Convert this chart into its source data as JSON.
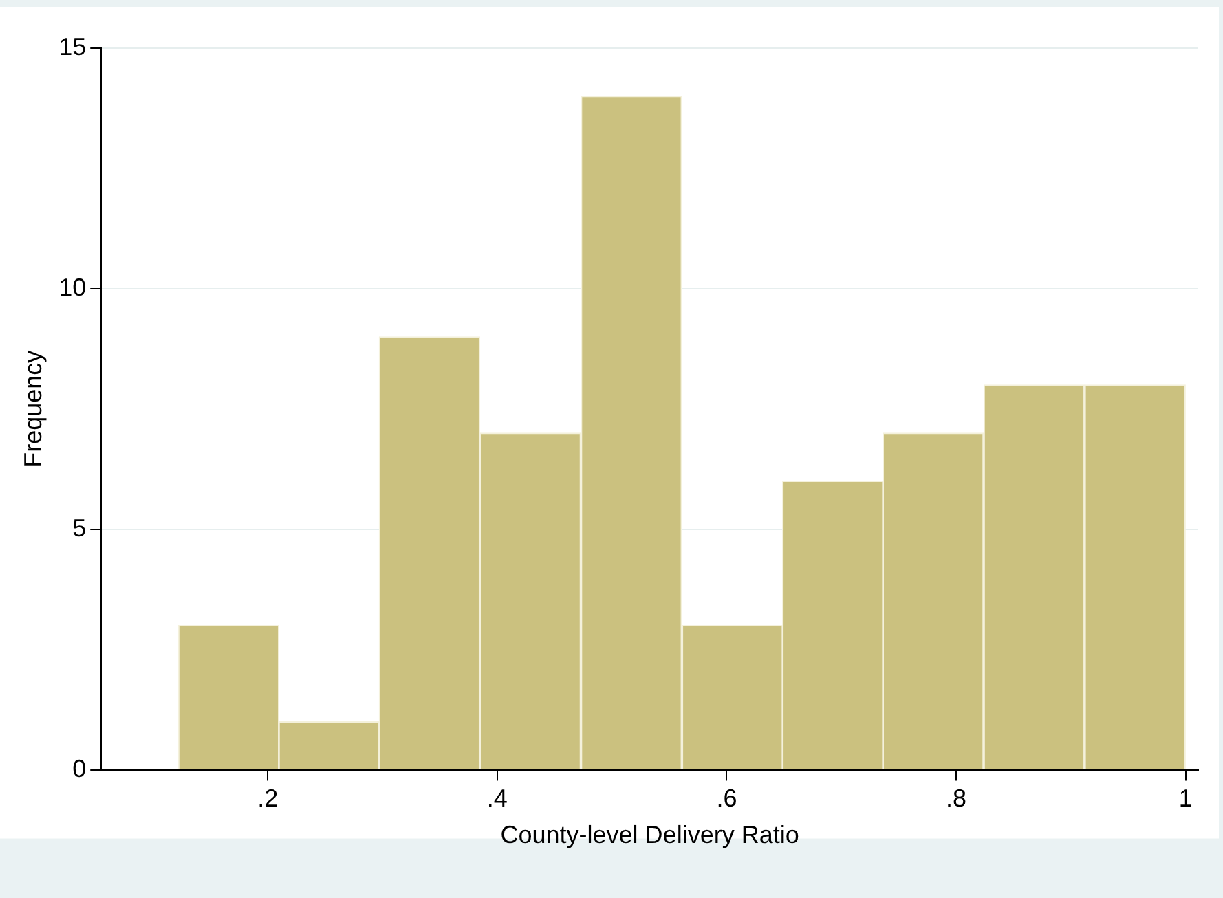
{
  "chart_data": {
    "type": "histogram",
    "xlabel": "County-level Delivery Ratio",
    "ylabel": "Frequency",
    "bins": [
      0.122,
      0.21,
      0.297,
      0.385,
      0.473,
      0.561,
      0.649,
      0.736,
      0.824,
      0.912,
      1.0
    ],
    "values": [
      3,
      1,
      9,
      7,
      14,
      3,
      6,
      7,
      8,
      8
    ],
    "color": "#cbc17f",
    "xlim": [
      0.055,
      1.011
    ],
    "xticks": [
      {
        "value": 0.2,
        "label": ".2"
      },
      {
        "value": 0.4,
        "label": ".4"
      },
      {
        "value": 0.6,
        "label": ".6"
      },
      {
        "value": 0.8,
        "label": ".8"
      },
      {
        "value": 1,
        "label": "1"
      }
    ],
    "ylim": [
      0,
      15
    ],
    "yticks": [
      0,
      5,
      10,
      15
    ],
    "grid": "y",
    "legend": false
  }
}
